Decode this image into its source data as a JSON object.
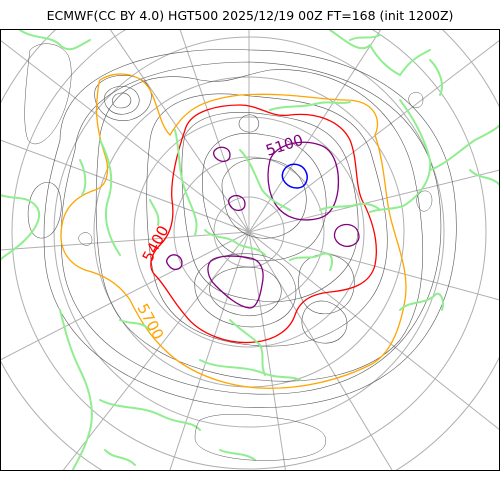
{
  "title": "ECMWF(CC BY 4.0) HGT500 2025/12/19 00Z FT=168 (init 1200Z)",
  "colors": {
    "coastline": "#90ee90",
    "graticule": "#b0b0b0",
    "thin_contour": "#555555",
    "contour_5700": "#ffa500",
    "contour_5400": "#ff0000",
    "contour_5100": "#800080",
    "contour_4800": "#0000ff"
  },
  "contour_labels": [
    {
      "text": "5100",
      "color": "#800080"
    },
    {
      "text": "5400",
      "color": "#ff0000"
    },
    {
      "text": "5700",
      "color": "#ffa500"
    }
  ]
}
